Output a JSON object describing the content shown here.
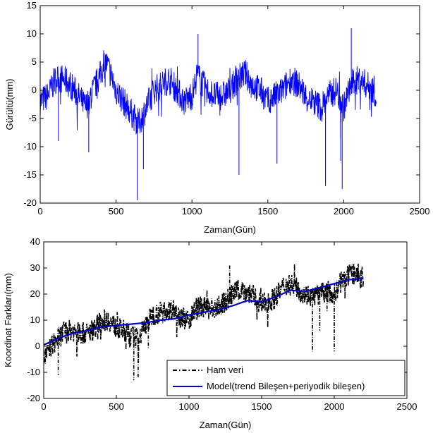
{
  "chart_data": [
    {
      "type": "line",
      "title": "",
      "xlabel": "Zaman(Gün)",
      "ylabel": "Gürültü(mm)",
      "xlim": [
        0,
        2500
      ],
      "ylim": [
        -20,
        15
      ],
      "xticks": [
        0,
        500,
        1000,
        1500,
        2000,
        2500
      ],
      "yticks": [
        -20,
        -15,
        -10,
        -5,
        0,
        5,
        10,
        15
      ],
      "xtick_labels": [
        "0",
        "500",
        "1000",
        "1500",
        "2000",
        "2500"
      ],
      "ytick_labels": [
        "-20",
        "-15",
        "-10",
        "-5",
        "0",
        "5",
        "10",
        "15"
      ],
      "grid": false,
      "legend": null,
      "series": [
        {
          "color": "#0000ff",
          "x": [
            0,
            50,
            100,
            150,
            200,
            250,
            300,
            350,
            400,
            430,
            450,
            500,
            550,
            600,
            650,
            700,
            750,
            800,
            850,
            900,
            950,
            1000,
            1040,
            1050,
            1100,
            1150,
            1200,
            1250,
            1300,
            1350,
            1400,
            1450,
            1500,
            1550,
            1600,
            1650,
            1700,
            1750,
            1800,
            1850,
            1900,
            1950,
            2000,
            2050,
            2100,
            2150,
            2200,
            2215
          ],
          "y": [
            -2,
            -1,
            2,
            2,
            1,
            -1,
            -3,
            0,
            3,
            5,
            4,
            0,
            -2,
            -4,
            -6,
            -3,
            0,
            1,
            2,
            0,
            -2,
            -1,
            3,
            2,
            0,
            -1,
            -1,
            0,
            2,
            3,
            1,
            0,
            -2,
            -1,
            0,
            2,
            1,
            -1,
            -2,
            -3,
            -1,
            0,
            -3,
            1,
            2,
            1,
            0,
            -1
          ],
          "spikes": [
            {
              "x": 640,
              "y": -19.5
            },
            {
              "x": 1040,
              "y": 10
            },
            {
              "x": 2050,
              "y": 11
            },
            {
              "x": 1990,
              "y": -17.5
            },
            {
              "x": 1880,
              "y": -16.5
            },
            {
              "x": 320,
              "y": -11
            },
            {
              "x": 1310,
              "y": -15
            },
            {
              "x": 1560,
              "y": -13
            },
            {
              "x": 1880,
              "y": -17
            },
            {
              "x": 1980,
              "y": -12.5
            },
            {
              "x": 680,
              "y": -14
            },
            {
              "x": 120,
              "y": -9
            }
          ]
        }
      ]
    },
    {
      "type": "line",
      "title": "",
      "xlabel": "Zaman(Gün)",
      "ylabel": "Koordinat Farkları(mm)",
      "xlim": [
        0,
        2500
      ],
      "ylim": [
        -20,
        40
      ],
      "xticks": [
        0,
        500,
        1000,
        1500,
        2000,
        2500
      ],
      "yticks": [
        -20,
        -10,
        0,
        10,
        20,
        30,
        40
      ],
      "xtick_labels": [
        "0",
        "500",
        "1000",
        "1500",
        "2000",
        "2500"
      ],
      "ytick_labels": [
        "-20",
        "-10",
        "0",
        "10",
        "20",
        "30",
        "40"
      ],
      "grid": false,
      "legend": "lower-right",
      "series": [
        {
          "name": "Ham veri",
          "color": "#000000",
          "style": "dash-dot",
          "x": [
            0,
            50,
            100,
            150,
            200,
            250,
            300,
            350,
            400,
            450,
            500,
            550,
            600,
            650,
            700,
            750,
            800,
            850,
            900,
            950,
            1000,
            1050,
            1100,
            1150,
            1200,
            1250,
            1300,
            1350,
            1400,
            1450,
            1500,
            1550,
            1600,
            1650,
            1700,
            1750,
            1800,
            1850,
            1900,
            1950,
            2000,
            2050,
            2100,
            2150,
            2200
          ],
          "y": [
            -5,
            0,
            3,
            6,
            6,
            5,
            5,
            7,
            10,
            10,
            7,
            6,
            4,
            3,
            8,
            12,
            13,
            14,
            14,
            11,
            10,
            15,
            15,
            14,
            15,
            17,
            20,
            22,
            21,
            19,
            16,
            17,
            19,
            23,
            24,
            22,
            20,
            19,
            20,
            21,
            20,
            25,
            27,
            28,
            26
          ],
          "spikes": [
            {
              "x": 620,
              "y": -13
            },
            {
              "x": 650,
              "y": -12
            },
            {
              "x": 1850,
              "y": -2
            },
            {
              "x": 2000,
              "y": -2
            },
            {
              "x": 100,
              "y": -11
            },
            {
              "x": 1280,
              "y": 31
            },
            {
              "x": 720,
              "y": -1
            },
            {
              "x": 1900,
              "y": 6
            },
            {
              "x": 1950,
              "y": 13
            }
          ]
        },
        {
          "name": "Model(trend Bileşen+periyodik bileşen)",
          "color": "#0000cc",
          "style": "solid",
          "x": [
            0,
            100,
            200,
            300,
            400,
            500,
            600,
            700,
            800,
            900,
            1000,
            1100,
            1200,
            1300,
            1400,
            1500,
            1600,
            1700,
            1800,
            1900,
            2000,
            2100,
            2200
          ],
          "y": [
            0.5,
            3,
            5,
            6,
            7.5,
            8,
            8.5,
            9,
            10,
            10.5,
            12,
            13,
            14,
            15.5,
            17.5,
            17,
            19,
            21.5,
            21,
            22.5,
            24,
            25.5,
            26
          ]
        }
      ]
    }
  ]
}
